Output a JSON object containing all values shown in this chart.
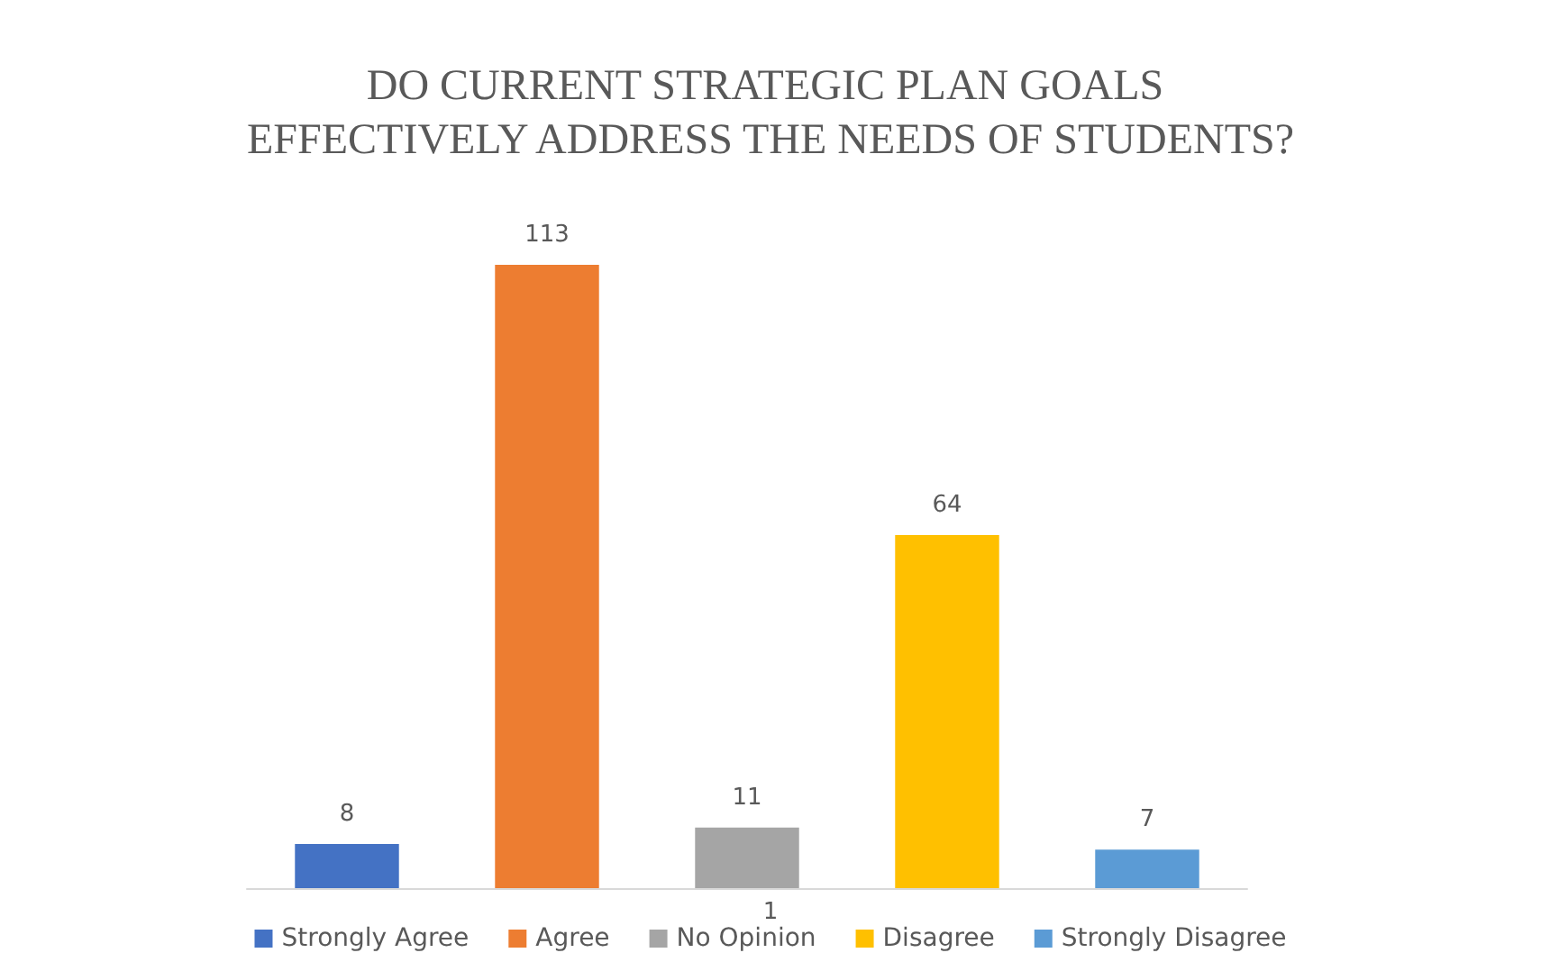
{
  "chart_data": {
    "type": "bar",
    "title": "DO CURRENT STRATEGIC PLAN GOALS EFFECTIVELY ADDRESS THE NEEDS OF STUDENTS?",
    "categories": [
      null,
      null,
      null,
      null,
      null
    ],
    "stacked": true,
    "series": [
      {
        "name": "Strongly Agree",
        "color": "#4472c4",
        "values": [
          8,
          null,
          null,
          null,
          null
        ]
      },
      {
        "name": "Agree",
        "color": "#ed7d31",
        "values": [
          null,
          113,
          null,
          null,
          null
        ]
      },
      {
        "name": "No Opinion",
        "color": "#a5a5a5",
        "values": [
          null,
          null,
          11,
          null,
          null
        ]
      },
      {
        "name": "Disagree",
        "color": "#ffc000",
        "values": [
          null,
          null,
          null,
          64,
          null
        ]
      },
      {
        "name": "Strongly Disagree",
        "color": "#5b9bd5",
        "values": [
          null,
          null,
          null,
          null,
          7
        ]
      }
    ],
    "annotations": [
      "1"
    ],
    "data_labels": true,
    "legend": "bottom"
  }
}
